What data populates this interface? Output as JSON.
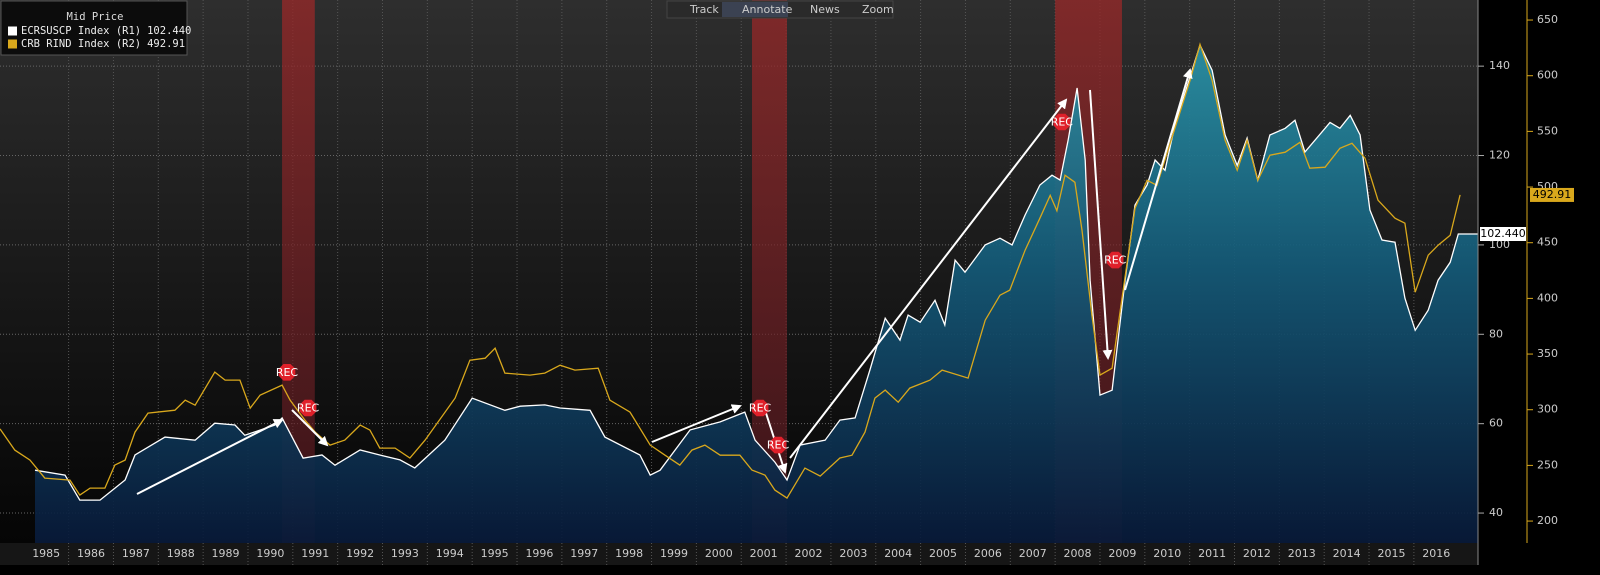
{
  "toolbar": [
    "Track",
    "Annotate",
    "News",
    "Zoom"
  ],
  "chart_data": {
    "type": "line",
    "legend_title": "Mid Price",
    "xlim": [
      1984.47,
      2017.43
    ],
    "xticks": [
      1986,
      1987,
      1988,
      1989,
      1990,
      1991,
      1992,
      1993,
      1994,
      1995,
      1996,
      1997,
      1998,
      1999,
      2000,
      2001,
      2002,
      2003,
      2004,
      2005,
      2006,
      2007,
      2008,
      2009,
      2010,
      2011,
      2012,
      2013,
      2014,
      2015,
      2016
    ],
    "x_labels": [
      {
        "value": 1985.5,
        "label": "1985"
      },
      {
        "value": 1986.5,
        "label": "1986"
      },
      {
        "value": 1987.5,
        "label": "1987"
      },
      {
        "value": 1988.5,
        "label": "1988"
      },
      {
        "value": 1989.5,
        "label": "1989"
      },
      {
        "value": 1990.5,
        "label": "1990"
      },
      {
        "value": 1991.5,
        "label": "1991"
      },
      {
        "value": 1992.5,
        "label": "1992"
      },
      {
        "value": 1993.5,
        "label": "1993"
      },
      {
        "value": 1994.5,
        "label": "1994"
      },
      {
        "value": 1995.5,
        "label": "1995"
      },
      {
        "value": 1996.5,
        "label": "1996"
      },
      {
        "value": 1997.5,
        "label": "1997"
      },
      {
        "value": 1998.5,
        "label": "1998"
      },
      {
        "value": 1999.5,
        "label": "1999"
      },
      {
        "value": 2000.5,
        "label": "2000"
      },
      {
        "value": 2001.5,
        "label": "2001"
      },
      {
        "value": 2002.5,
        "label": "2002"
      },
      {
        "value": 2003.5,
        "label": "2003"
      },
      {
        "value": 2004.5,
        "label": "2004"
      },
      {
        "value": 2005.5,
        "label": "2005"
      },
      {
        "value": 2006.5,
        "label": "2006"
      },
      {
        "value": 2007.5,
        "label": "2007"
      },
      {
        "value": 2008.5,
        "label": "2008"
      },
      {
        "value": 2009.5,
        "label": "2009"
      },
      {
        "value": 2010.5,
        "label": "2010"
      },
      {
        "value": 2011.5,
        "label": "2011"
      },
      {
        "value": 2012.5,
        "label": "2012"
      },
      {
        "value": 2013.5,
        "label": "2013"
      },
      {
        "value": 2014.5,
        "label": "2014"
      },
      {
        "value": 2015.5,
        "label": "2015"
      },
      {
        "value": 2016.5,
        "label": "2016"
      }
    ],
    "ylim": [
      33.3,
      154.8
    ],
    "yticks": [
      40,
      60,
      80,
      100,
      120,
      140
    ],
    "y2lim": [
      180.3,
      668
    ],
    "y2ticks": [
      200,
      250,
      300,
      350,
      400,
      450,
      500,
      550,
      600,
      650
    ],
    "grid": true,
    "recessions": [
      [
        1990.76,
        1991.49
      ],
      [
        2001.24,
        2002.02
      ],
      [
        2008.0,
        2009.49
      ]
    ],
    "annotations": [
      {
        "text": "REC",
        "x": 1990.87,
        "y": 71.5
      },
      {
        "text": "REC",
        "x": 1991.34,
        "y": 63.5
      },
      {
        "text": "REC",
        "x": 2001.42,
        "y": 63.5
      },
      {
        "text": "REC",
        "x": 2001.82,
        "y": 55.2
      },
      {
        "text": "REC",
        "x": 2008.15,
        "y": 127.5
      },
      {
        "text": "REC",
        "x": 2009.34,
        "y": 96.6
      }
    ],
    "series": [
      {
        "name": "ECRSUSCP Index (R1)",
        "color": "#ffffff",
        "axis": "y",
        "area": true,
        "last_label": "102.440",
        "x": [
          1985.25,
          1985.92,
          1986.25,
          1986.7,
          1987.26,
          1987.48,
          1988.15,
          1988.82,
          1989.26,
          1989.71,
          1989.93,
          1990.6,
          1990.76,
          1991.23,
          1991.65,
          1991.94,
          1992.5,
          1992.94,
          1993.39,
          1993.72,
          1994.39,
          1995.0,
          1995.73,
          1996.07,
          1996.62,
          1996.96,
          1997.63,
          1997.96,
          1998.74,
          1998.97,
          1999.19,
          1999.86,
          2000.53,
          2001.08,
          2001.31,
          2001.75,
          2002.02,
          2002.31,
          2002.87,
          2003.2,
          2003.54,
          2003.87,
          2004.21,
          2004.54,
          2004.72,
          2004.99,
          2005.32,
          2005.54,
          2005.77,
          2005.99,
          2006.44,
          2006.77,
          2007.04,
          2007.33,
          2007.66,
          2007.93,
          2008.11,
          2008.29,
          2008.49,
          2008.67,
          2008.78,
          2009.0,
          2009.27,
          2009.56,
          2009.78,
          2010.05,
          2010.23,
          2010.45,
          2010.67,
          2011.23,
          2011.5,
          2011.79,
          2012.06,
          2012.28,
          2012.52,
          2012.79,
          2013.13,
          2013.35,
          2013.57,
          2014.13,
          2014.35,
          2014.58,
          2014.8,
          2015.02,
          2015.29,
          2015.58,
          2015.8,
          2016.03,
          2016.32,
          2016.54,
          2016.81,
          2016.99,
          2017.43
        ],
        "values": [
          49.6,
          48.5,
          42.9,
          42.9,
          47.4,
          53.0,
          57.0,
          56.3,
          60.1,
          59.7,
          57.4,
          59.7,
          61.3,
          52.3,
          53.0,
          50.7,
          54.1,
          53.0,
          51.9,
          50.1,
          56.3,
          65.7,
          63.0,
          63.9,
          64.2,
          63.5,
          63.0,
          57.0,
          53.0,
          48.5,
          49.6,
          58.6,
          60.4,
          62.6,
          56.3,
          51.4,
          47.4,
          55.2,
          56.3,
          60.8,
          61.3,
          72.0,
          83.6,
          78.7,
          84.3,
          82.7,
          87.6,
          82.1,
          96.6,
          93.9,
          100.0,
          101.5,
          100.0,
          106.7,
          113.4,
          115.6,
          114.5,
          123.4,
          135.1,
          119.0,
          92.1,
          66.4,
          67.5,
          92.1,
          108.9,
          113.4,
          119.0,
          116.7,
          126.8,
          144.7,
          139.1,
          124.6,
          117.8,
          123.9,
          114.5,
          124.6,
          126.1,
          127.9,
          120.8,
          127.4,
          126.1,
          129.0,
          124.6,
          107.8,
          101.1,
          100.6,
          88.1,
          80.9,
          85.4,
          92.1,
          96.1,
          102.44,
          102.44
        ]
      },
      {
        "name": "CRB RIND Index (R2)",
        "color": "#d9a81c",
        "axis": "y2",
        "last_label": "492.91",
        "x": [
          1984.47,
          1984.8,
          1985.14,
          1985.47,
          1986.03,
          1986.25,
          1986.48,
          1986.81,
          1987.03,
          1987.26,
          1987.48,
          1987.77,
          1988.37,
          1988.6,
          1988.82,
          1989.26,
          1989.49,
          1989.82,
          1990.05,
          1990.27,
          1990.76,
          1990.94,
          1991.27,
          1991.5,
          1991.83,
          1992.16,
          1992.5,
          1992.72,
          1992.94,
          1993.28,
          1993.61,
          1993.95,
          1994.62,
          1994.95,
          1995.29,
          1995.51,
          1995.73,
          1996.29,
          1996.62,
          1996.96,
          1997.29,
          1997.81,
          1998.07,
          1998.52,
          1998.97,
          1999.3,
          1999.63,
          1999.9,
          2000.19,
          2000.53,
          2000.97,
          2001.24,
          2001.53,
          2001.75,
          2002.02,
          2002.42,
          2002.76,
          2003.2,
          2003.47,
          2003.76,
          2003.98,
          2004.21,
          2004.5,
          2004.76,
          2005.21,
          2005.48,
          2006.06,
          2006.44,
          2006.77,
          2006.99,
          2007.33,
          2007.66,
          2007.89,
          2008.04,
          2008.22,
          2008.44,
          2008.6,
          2008.82,
          2009.0,
          2009.27,
          2009.49,
          2009.78,
          2010.05,
          2010.27,
          2010.67,
          2011.01,
          2011.23,
          2011.5,
          2011.79,
          2012.06,
          2012.28,
          2012.52,
          2012.79,
          2013.13,
          2013.46,
          2013.68,
          2014.02,
          2014.35,
          2014.62,
          2014.91,
          2015.2,
          2015.58,
          2015.8,
          2016.03,
          2016.32,
          2016.54,
          2016.81,
          2017.03
        ],
        "values": [
          282.8,
          263.7,
          254.8,
          238.6,
          236.8,
          223.3,
          229.6,
          229.6,
          250.3,
          254.8,
          279.9,
          297.0,
          299.6,
          308.6,
          304.1,
          333.8,
          326.6,
          326.6,
          301.4,
          313.1,
          322.1,
          308.6,
          290.7,
          279.9,
          268.2,
          272.7,
          286.2,
          281.7,
          265.5,
          265.5,
          256.6,
          272.7,
          310.4,
          344.5,
          346.3,
          355.3,
          332.9,
          331.1,
          332.9,
          340.0,
          335.6,
          337.3,
          308.6,
          297.9,
          268.2,
          259.2,
          250.3,
          263.7,
          268.2,
          259.2,
          259.2,
          245.8,
          241.3,
          227.8,
          220.6,
          247.6,
          240.4,
          256.6,
          259.2,
          279.9,
          310.4,
          317.6,
          306.8,
          319.4,
          326.6,
          335.6,
          328.4,
          380.4,
          402.9,
          407.4,
          443.3,
          472.0,
          492.6,
          478.7,
          510.6,
          504.3,
          461.2,
          384.9,
          331.1,
          337.3,
          400.2,
          481.0,
          506.1,
          501.6,
          552.8,
          595.9,
          628.2,
          595.9,
          542.0,
          515.1,
          542.0,
          506.1,
          528.6,
          531.3,
          540.2,
          516.9,
          517.8,
          534.8,
          539.3,
          525.9,
          488.2,
          472.0,
          467.5,
          405.6,
          438.8,
          447.8,
          456.7,
          492.91
        ]
      }
    ]
  }
}
